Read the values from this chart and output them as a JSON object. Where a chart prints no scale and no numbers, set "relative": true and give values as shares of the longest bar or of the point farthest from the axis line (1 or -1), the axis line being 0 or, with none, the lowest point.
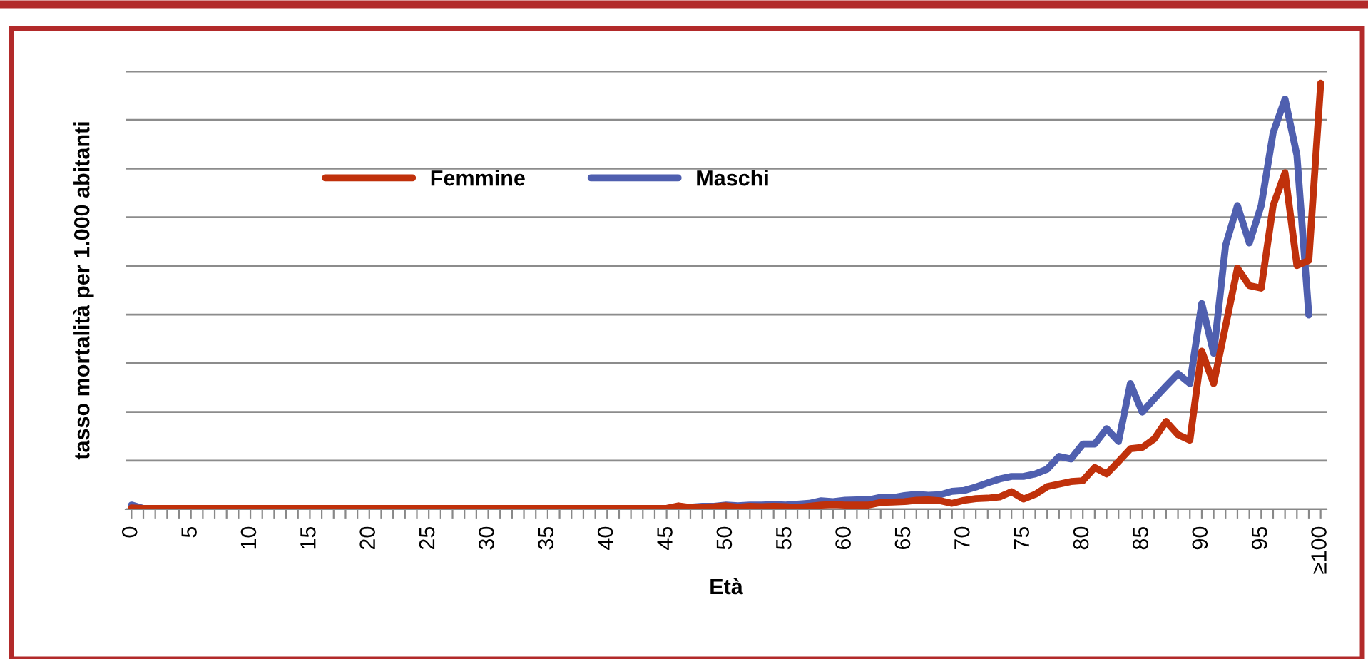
{
  "chart_data": {
    "type": "line",
    "relative": true,
    "xlabel": "Età",
    "ylabel": "tasso mortalità per 1.000 abitanti",
    "categories": [
      "0",
      null,
      null,
      null,
      null,
      "5",
      null,
      null,
      null,
      null,
      "10",
      null,
      null,
      null,
      null,
      "15",
      null,
      null,
      null,
      null,
      "20",
      null,
      null,
      null,
      null,
      "25",
      null,
      null,
      null,
      null,
      "30",
      null,
      null,
      null,
      null,
      "35",
      null,
      null,
      null,
      null,
      "40",
      null,
      null,
      null,
      null,
      "45",
      null,
      null,
      null,
      null,
      "50",
      null,
      null,
      null,
      null,
      "55",
      null,
      null,
      null,
      null,
      "60",
      null,
      null,
      null,
      null,
      "65",
      null,
      null,
      null,
      null,
      "70",
      null,
      null,
      null,
      null,
      "75",
      null,
      null,
      null,
      null,
      "80",
      null,
      null,
      null,
      null,
      "85",
      null,
      null,
      null,
      null,
      "90",
      null,
      null,
      null,
      null,
      "95",
      null,
      null,
      null,
      null,
      "≥100"
    ],
    "series": [
      {
        "name": "Femmine",
        "color": "#c0310b",
        "values": [
          0.003,
          0.002,
          0.002,
          0.002,
          0.002,
          0.002,
          0.002,
          0.002,
          0.002,
          0.002,
          0.002,
          0.002,
          0.002,
          0.002,
          0.002,
          0.002,
          0.002,
          0.002,
          0.002,
          0.002,
          0.002,
          0.002,
          0.002,
          0.002,
          0.002,
          0.002,
          0.002,
          0.002,
          0.002,
          0.002,
          0.002,
          0.002,
          0.002,
          0.002,
          0.002,
          0.002,
          0.002,
          0.002,
          0.002,
          0.002,
          0.002,
          0.002,
          0.002,
          0.002,
          0.002,
          0.002,
          0.008,
          0.004,
          0.005,
          0.006,
          0.008,
          0.005,
          0.007,
          0.006,
          0.007,
          0.006,
          0.004,
          0.007,
          0.01,
          0.011,
          0.01,
          0.01,
          0.01,
          0.016,
          0.017,
          0.018,
          0.021,
          0.022,
          0.02,
          0.014,
          0.021,
          0.025,
          0.026,
          0.029,
          0.041,
          0.024,
          0.035,
          0.053,
          0.059,
          0.065,
          0.067,
          0.098,
          0.083,
          0.112,
          0.142,
          0.145,
          0.165,
          0.206,
          0.175,
          0.162,
          0.371,
          0.295,
          0.43,
          0.566,
          0.525,
          0.519,
          0.713,
          0.79,
          0.572,
          0.584,
          1.0
        ]
      },
      {
        "name": "Maschi",
        "color": "#4f5faf",
        "values": [
          0.01,
          0.002,
          null,
          null,
          null,
          null,
          null,
          null,
          null,
          null,
          null,
          null,
          null,
          null,
          null,
          null,
          null,
          null,
          null,
          null,
          null,
          null,
          null,
          null,
          null,
          null,
          null,
          null,
          null,
          null,
          null,
          null,
          null,
          null,
          null,
          null,
          null,
          null,
          null,
          null,
          null,
          null,
          null,
          null,
          null,
          0.002,
          0.004,
          0.005,
          0.007,
          0.007,
          0.01,
          0.008,
          0.01,
          0.01,
          0.011,
          0.01,
          0.012,
          0.014,
          0.02,
          0.018,
          0.021,
          0.022,
          0.022,
          0.028,
          0.027,
          0.032,
          0.035,
          0.033,
          0.034,
          0.042,
          0.044,
          0.052,
          0.062,
          0.071,
          0.077,
          0.077,
          0.083,
          0.094,
          0.124,
          0.118,
          0.153,
          0.153,
          0.189,
          0.159,
          0.295,
          0.228,
          0.259,
          0.289,
          0.318,
          0.295,
          0.483,
          0.366,
          0.619,
          0.713,
          0.625,
          0.713,
          0.884,
          0.963,
          0.831,
          0.456,
          null
        ]
      }
    ],
    "grid": "y",
    "legend": "top left",
    "marker": "none",
    "line_style": "solid"
  }
}
